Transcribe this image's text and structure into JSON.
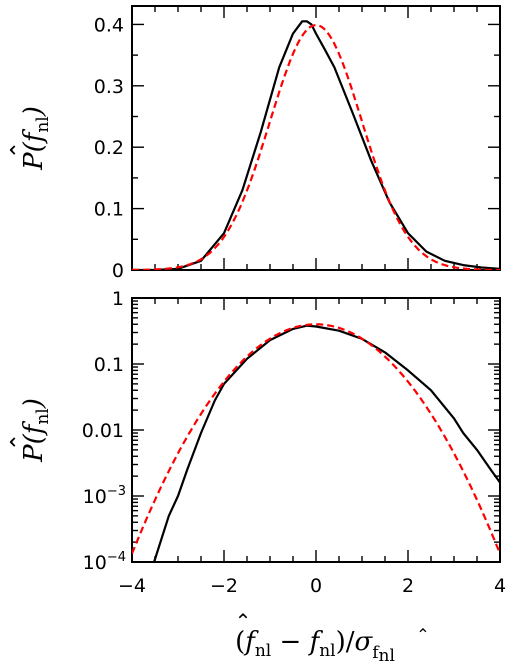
{
  "chart_data": [
    {
      "type": "line",
      "panel": "top",
      "scale_y": "linear",
      "xlim": [
        -4,
        4
      ],
      "ylim": [
        0,
        0.43
      ],
      "x_ticks": [],
      "y_ticks": [
        {
          "value": 0,
          "label": "0"
        },
        {
          "value": 0.1,
          "label": "0.1"
        },
        {
          "value": 0.2,
          "label": "0.2"
        },
        {
          "value": 0.3,
          "label": "0.3"
        },
        {
          "value": 0.4,
          "label": "0.4"
        }
      ],
      "ylabel": "P(f̂nl)",
      "grid": false,
      "series": [
        {
          "style": "solid",
          "color": "#000000",
          "x": [
            -4.0,
            -3.5,
            -3.0,
            -2.5,
            -2.0,
            -1.6,
            -1.2,
            -0.8,
            -0.5,
            -0.3,
            -0.2,
            -0.1,
            0.0,
            0.2,
            0.4,
            0.8,
            1.2,
            1.6,
            2.0,
            2.4,
            2.8,
            3.2,
            3.6,
            4.0
          ],
          "y": [
            0.0,
            0.0,
            0.002,
            0.015,
            0.06,
            0.13,
            0.225,
            0.33,
            0.385,
            0.405,
            0.405,
            0.4,
            0.385,
            0.358,
            0.33,
            0.255,
            0.178,
            0.11,
            0.06,
            0.03,
            0.015,
            0.008,
            0.004,
            0.002
          ]
        },
        {
          "style": "dashed",
          "color": "#ff0000",
          "function": "standard_normal_pdf",
          "x": [
            -4.0,
            -3.5,
            -3.0,
            -2.5,
            -2.0,
            -1.5,
            -1.0,
            -0.5,
            0.0,
            0.5,
            1.0,
            1.5,
            2.0,
            2.5,
            3.0,
            3.5,
            4.0
          ],
          "y": [
            0.0001,
            0.0009,
            0.0044,
            0.0175,
            0.054,
            0.1295,
            0.242,
            0.3521,
            0.3989,
            0.3521,
            0.242,
            0.1295,
            0.054,
            0.0175,
            0.0044,
            0.0009,
            0.0001
          ]
        }
      ]
    },
    {
      "type": "line",
      "panel": "bottom",
      "scale_y": "log",
      "xlim": [
        -4,
        4
      ],
      "ylim": [
        0.0001,
        1
      ],
      "x_ticks": [
        {
          "value": -4,
          "label": "−4"
        },
        {
          "value": -2,
          "label": "−2"
        },
        {
          "value": 0,
          "label": "0"
        },
        {
          "value": 2,
          "label": "2"
        },
        {
          "value": 4,
          "label": "4"
        }
      ],
      "y_ticks": [
        {
          "value": 0.0001,
          "label": "10",
          "exp": "−4"
        },
        {
          "value": 0.001,
          "label": "10",
          "exp": "−3"
        },
        {
          "value": 0.01,
          "label": "0.01"
        },
        {
          "value": 0.1,
          "label": "0.1"
        },
        {
          "value": 1,
          "label": "1"
        }
      ],
      "ylabel": "P(f̂nl)",
      "xlabel": "(f̂nl − fnl)/σf̂nl",
      "grid": false,
      "series": [
        {
          "style": "solid",
          "color": "#000000",
          "x": [
            -3.52,
            -3.2,
            -3.0,
            -2.8,
            -2.5,
            -2.2,
            -2.0,
            -1.5,
            -1.0,
            -0.5,
            -0.2,
            0.0,
            0.5,
            1.0,
            1.5,
            2.0,
            2.5,
            3.0,
            3.2,
            3.5,
            3.8,
            4.0
          ],
          "y": [
            0.0001,
            0.0005,
            0.001,
            0.0025,
            0.009,
            0.028,
            0.05,
            0.12,
            0.23,
            0.34,
            0.38,
            0.37,
            0.32,
            0.24,
            0.15,
            0.08,
            0.04,
            0.015,
            0.009,
            0.005,
            0.0025,
            0.0016
          ]
        },
        {
          "style": "dashed",
          "color": "#ff0000",
          "function": "standard_normal_pdf",
          "x": [
            -4.0,
            -3.5,
            -3.0,
            -2.5,
            -2.0,
            -1.5,
            -1.0,
            -0.5,
            0.0,
            0.5,
            1.0,
            1.5,
            2.0,
            2.5,
            3.0,
            3.5,
            4.0
          ],
          "y": [
            0.000134,
            0.000873,
            0.00443,
            0.0175,
            0.054,
            0.1295,
            0.242,
            0.3521,
            0.3989,
            0.3521,
            0.242,
            0.1295,
            0.054,
            0.0175,
            0.00443,
            0.000873,
            0.000134
          ]
        }
      ]
    }
  ],
  "colors": {
    "observed": "#000000",
    "gaussian": "#ff0000"
  }
}
